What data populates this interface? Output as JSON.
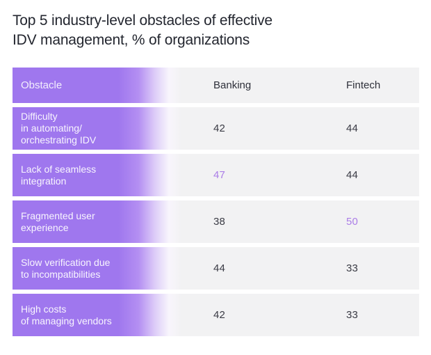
{
  "header": {
    "title_line1": "Top 5 industry-level obstacles of effective",
    "title_line2": "IDV management, % of organizations"
  },
  "table": {
    "columns": {
      "obstacle": "Obstacle",
      "banking": "Banking",
      "fintech": "Fintech"
    },
    "rows": [
      {
        "label": "Difficulty\nin automating/\norchestrating IDV",
        "banking": "42",
        "fintech": "44",
        "banking_highlighted": false,
        "fintech_highlighted": false
      },
      {
        "label": "Lack of seamless\nintegration",
        "banking": "47",
        "fintech": "44",
        "banking_highlighted": true,
        "fintech_highlighted": false
      },
      {
        "label": "Fragmented user\nexperience",
        "banking": "38",
        "fintech": "50",
        "banking_highlighted": false,
        "fintech_highlighted": true
      },
      {
        "label": "Slow verification due\nto incompatibilities",
        "banking": "44",
        "fintech": "33",
        "banking_highlighted": false,
        "fintech_highlighted": false
      },
      {
        "label": "High costs\nof managing vendors",
        "banking": "42",
        "fintech": "33",
        "banking_highlighted": false,
        "fintech_highlighted": false
      }
    ]
  },
  "colors": {
    "accent_purple": "#9f77ee",
    "highlight_value": "#ab7de7",
    "row_gray": "#f2f2f3",
    "title_text": "#23262f"
  },
  "chart_data": {
    "type": "table",
    "title": "Top 5 industry-level obstacles of effective IDV management, % of organizations",
    "columns": [
      "Obstacle",
      "Banking",
      "Fintech"
    ],
    "categories": [
      "Banking",
      "Fintech"
    ],
    "series": [
      {
        "name": "Difficulty in automating/orchestrating IDV",
        "values": [
          42,
          44
        ]
      },
      {
        "name": "Lack of seamless integration",
        "values": [
          47,
          44
        ]
      },
      {
        "name": "Fragmented user experience",
        "values": [
          38,
          50
        ]
      },
      {
        "name": "Slow verification due to incompatibilities",
        "values": [
          44,
          33
        ]
      },
      {
        "name": "High costs of managing vendors",
        "values": [
          42,
          33
        ]
      }
    ],
    "highlighted_values": [
      {
        "row": "Lack of seamless integration",
        "column": "Banking",
        "value": 47
      },
      {
        "row": "Fragmented user experience",
        "column": "Fintech",
        "value": 50
      }
    ],
    "unit": "% of organizations"
  }
}
